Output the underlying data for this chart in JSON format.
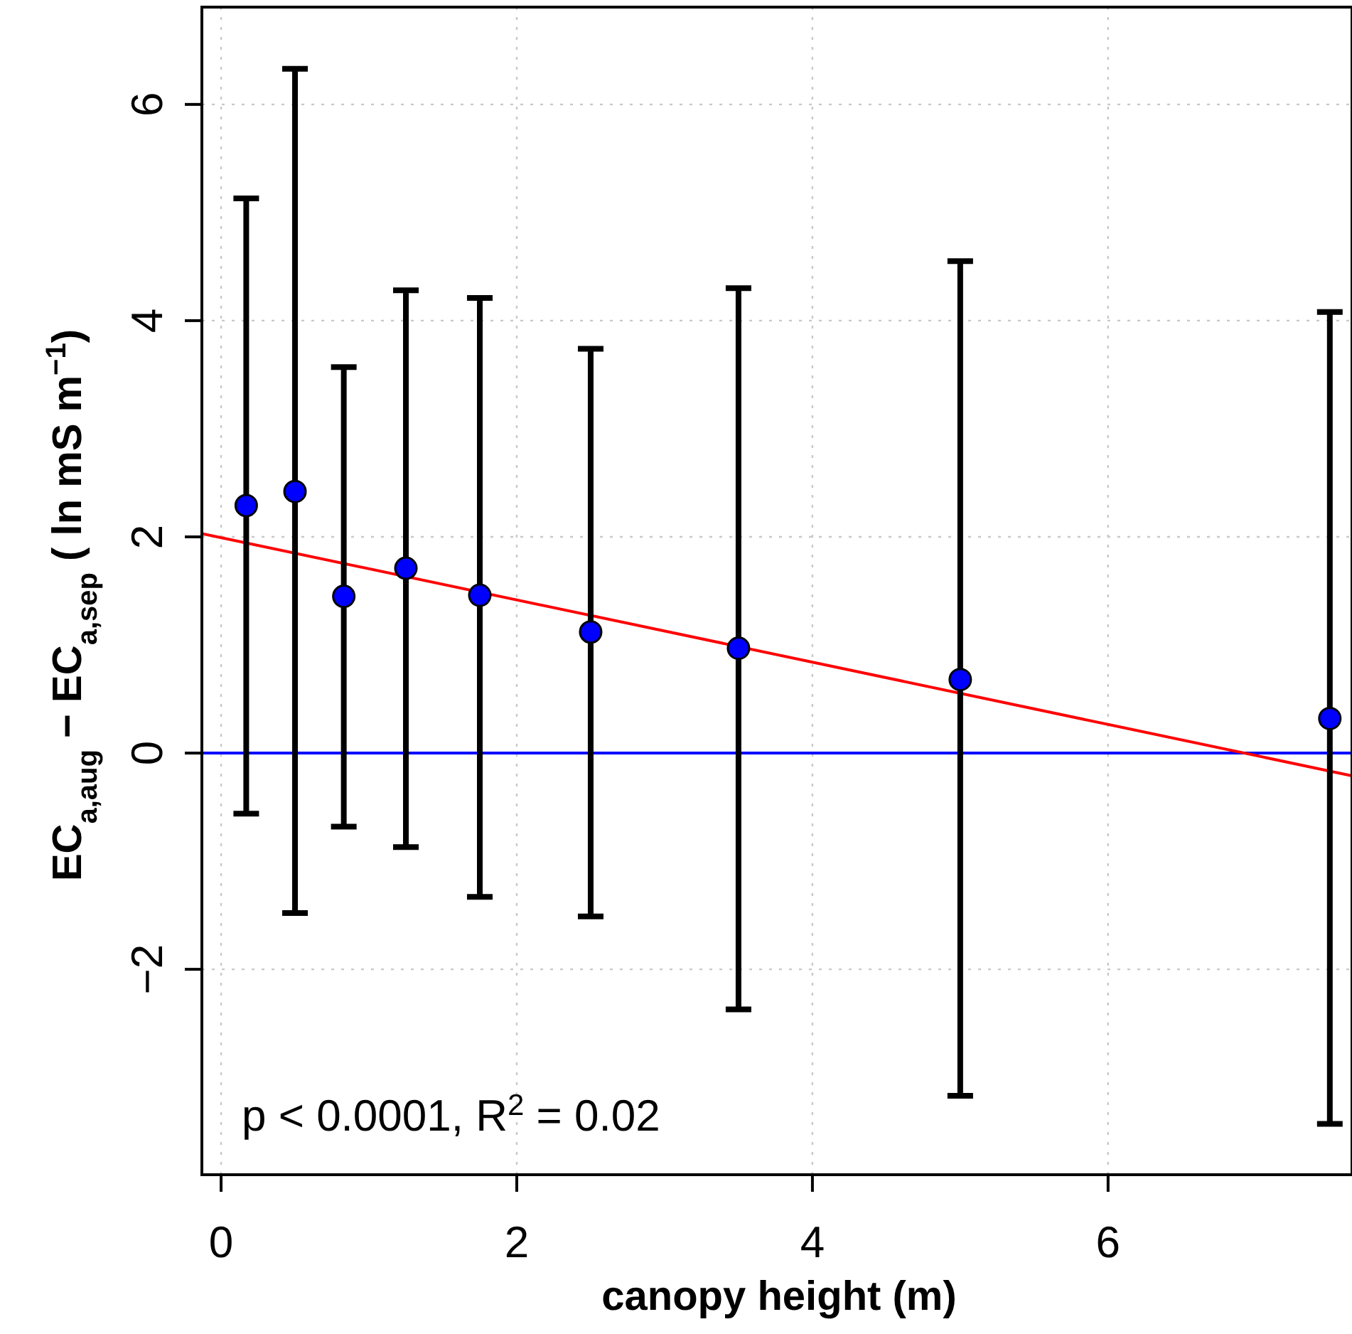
{
  "chart_data": {
    "type": "scatter",
    "xlabel": "canopy height (m)",
    "ylabel": "EC$_{a,aug}$ − EC$_{a,sep}$ ( ln mS m$^{−1}$)",
    "xlim": [
      -0.13,
      7.65
    ],
    "ylim": [
      -3.9,
      6.9
    ],
    "xticks": [
      0,
      2,
      4,
      6
    ],
    "yticks": [
      -2,
      0,
      2,
      4,
      6
    ],
    "grid": true,
    "series": [
      {
        "marker": "circle",
        "color": "#0000ff",
        "x": [
          0.17,
          0.5,
          0.83,
          1.25,
          1.75,
          2.5,
          3.5,
          5,
          7.5
        ],
        "values": [
          2.29,
          2.42,
          1.45,
          1.71,
          1.46,
          1.12,
          0.97,
          0.68,
          0.32
        ],
        "errors": [
          [
            -0.56,
            5.13
          ],
          [
            -1.48,
            6.33
          ],
          [
            -0.68,
            3.57
          ],
          [
            -0.87,
            4.28
          ],
          [
            -1.33,
            4.21
          ],
          [
            -1.51,
            3.74
          ],
          [
            -2.37,
            4.3
          ],
          [
            -3.17,
            4.55
          ],
          [
            -3.43,
            4.08
          ]
        ]
      },
      {
        "type": "line",
        "color": "#ff0000",
        "x": [
          -0.13,
          7.65
        ],
        "values": [
          2.03,
          -0.21
        ]
      }
    ],
    "ref_lines": [
      {
        "axis": "y",
        "value": 0,
        "color": "#0000ff"
      }
    ],
    "annotations": [
      {
        "text": "p < 0.0001, R$^{2}$ = 0.02"
      }
    ]
  }
}
